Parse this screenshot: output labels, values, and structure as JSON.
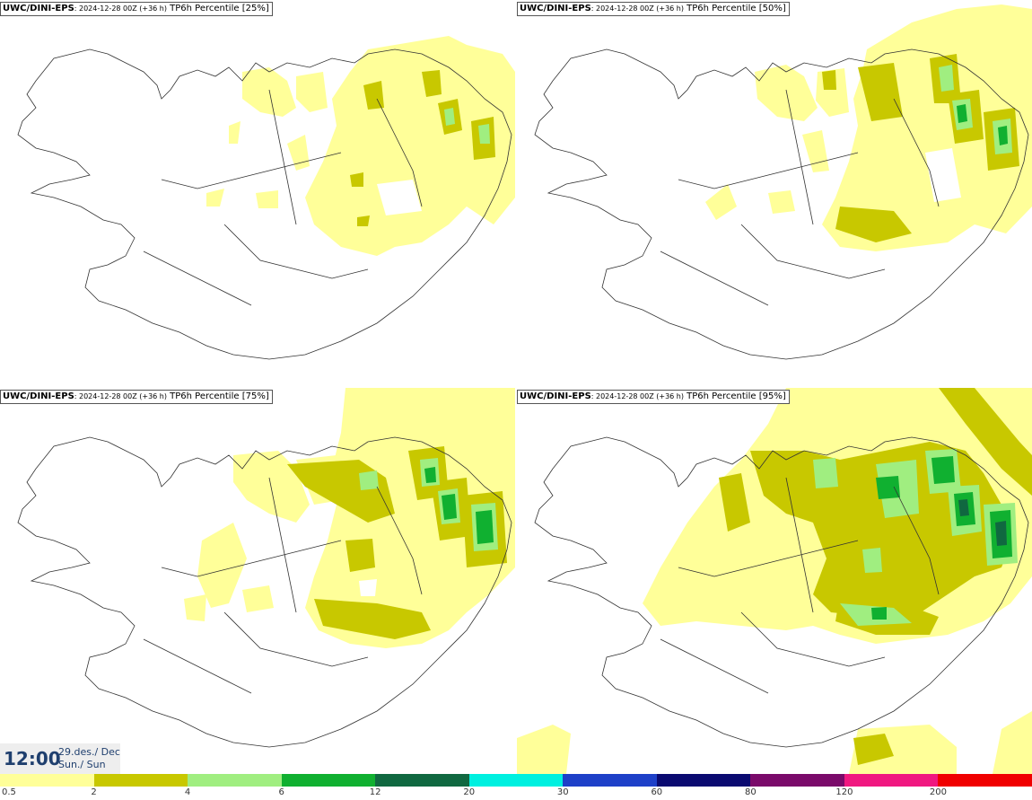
{
  "panels": [
    {
      "model": "UWC/DINI-EPS",
      "run": ": 2024-12-28 00Z (+36 h)",
      "product": " TP6h Percentile [25%]"
    },
    {
      "model": "UWC/DINI-EPS",
      "run": ": 2024-12-28 00Z (+36 h)",
      "product": " TP6h Percentile [50%]"
    },
    {
      "model": "UWC/DINI-EPS",
      "run": ": 2024-12-28 00Z (+36 h)",
      "product": " TP6h Percentile [75%]"
    },
    {
      "model": "UWC/DINI-EPS",
      "run": ": 2024-12-28 00Z (+36 h)",
      "product": " TP6h Percentile [95%]"
    }
  ],
  "valid_time": {
    "time": "12:00",
    "date": "29.des./ Dec",
    "day": "Sun./ Sun"
  },
  "legend": {
    "labels": [
      "0.5",
      "2",
      "4",
      "6",
      "12",
      "20",
      "30",
      "60",
      "80",
      "120",
      "200"
    ],
    "colors": [
      "#ffff99",
      "#c8c800",
      "#a0ee80",
      "#10b030",
      "#106840",
      "#00f0e0",
      "#1e40c8",
      "#0a0a70",
      "#7a0a6a",
      "#f01880",
      "#f00000"
    ]
  },
  "colors": {
    "light": "#ffff99",
    "olive": "#c8c800",
    "lightgreen": "#a0ee80",
    "green": "#10b030",
    "darkgreen": "#106840",
    "coast": "#333333",
    "title_text": "#1f3f6e"
  }
}
